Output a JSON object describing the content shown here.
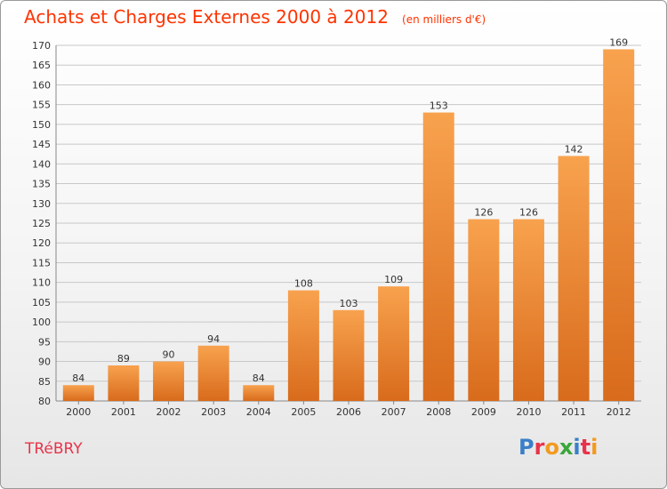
{
  "title": "Achats et Charges Externes 2000 à 2012",
  "unit": "(en milliers d'€)",
  "location": "TRéBRY",
  "logo": "Proxiti",
  "colors": {
    "title": "#ff3300",
    "location": "#e8334a",
    "bar_light": "#f8a24e",
    "bar_dark": "#d86b1c",
    "grid": "#c8c8c8"
  },
  "chart_data": {
    "type": "bar",
    "categories": [
      "2000",
      "2001",
      "2002",
      "2003",
      "2004",
      "2005",
      "2006",
      "2007",
      "2008",
      "2009",
      "2010",
      "2011",
      "2012"
    ],
    "values": [
      84,
      89,
      90,
      94,
      84,
      108,
      103,
      109,
      153,
      126,
      126,
      142,
      169
    ],
    "ylim": [
      80,
      170
    ],
    "ytick_step": 5,
    "grid": "horizontal",
    "xlabel": "",
    "ylabel": ""
  }
}
